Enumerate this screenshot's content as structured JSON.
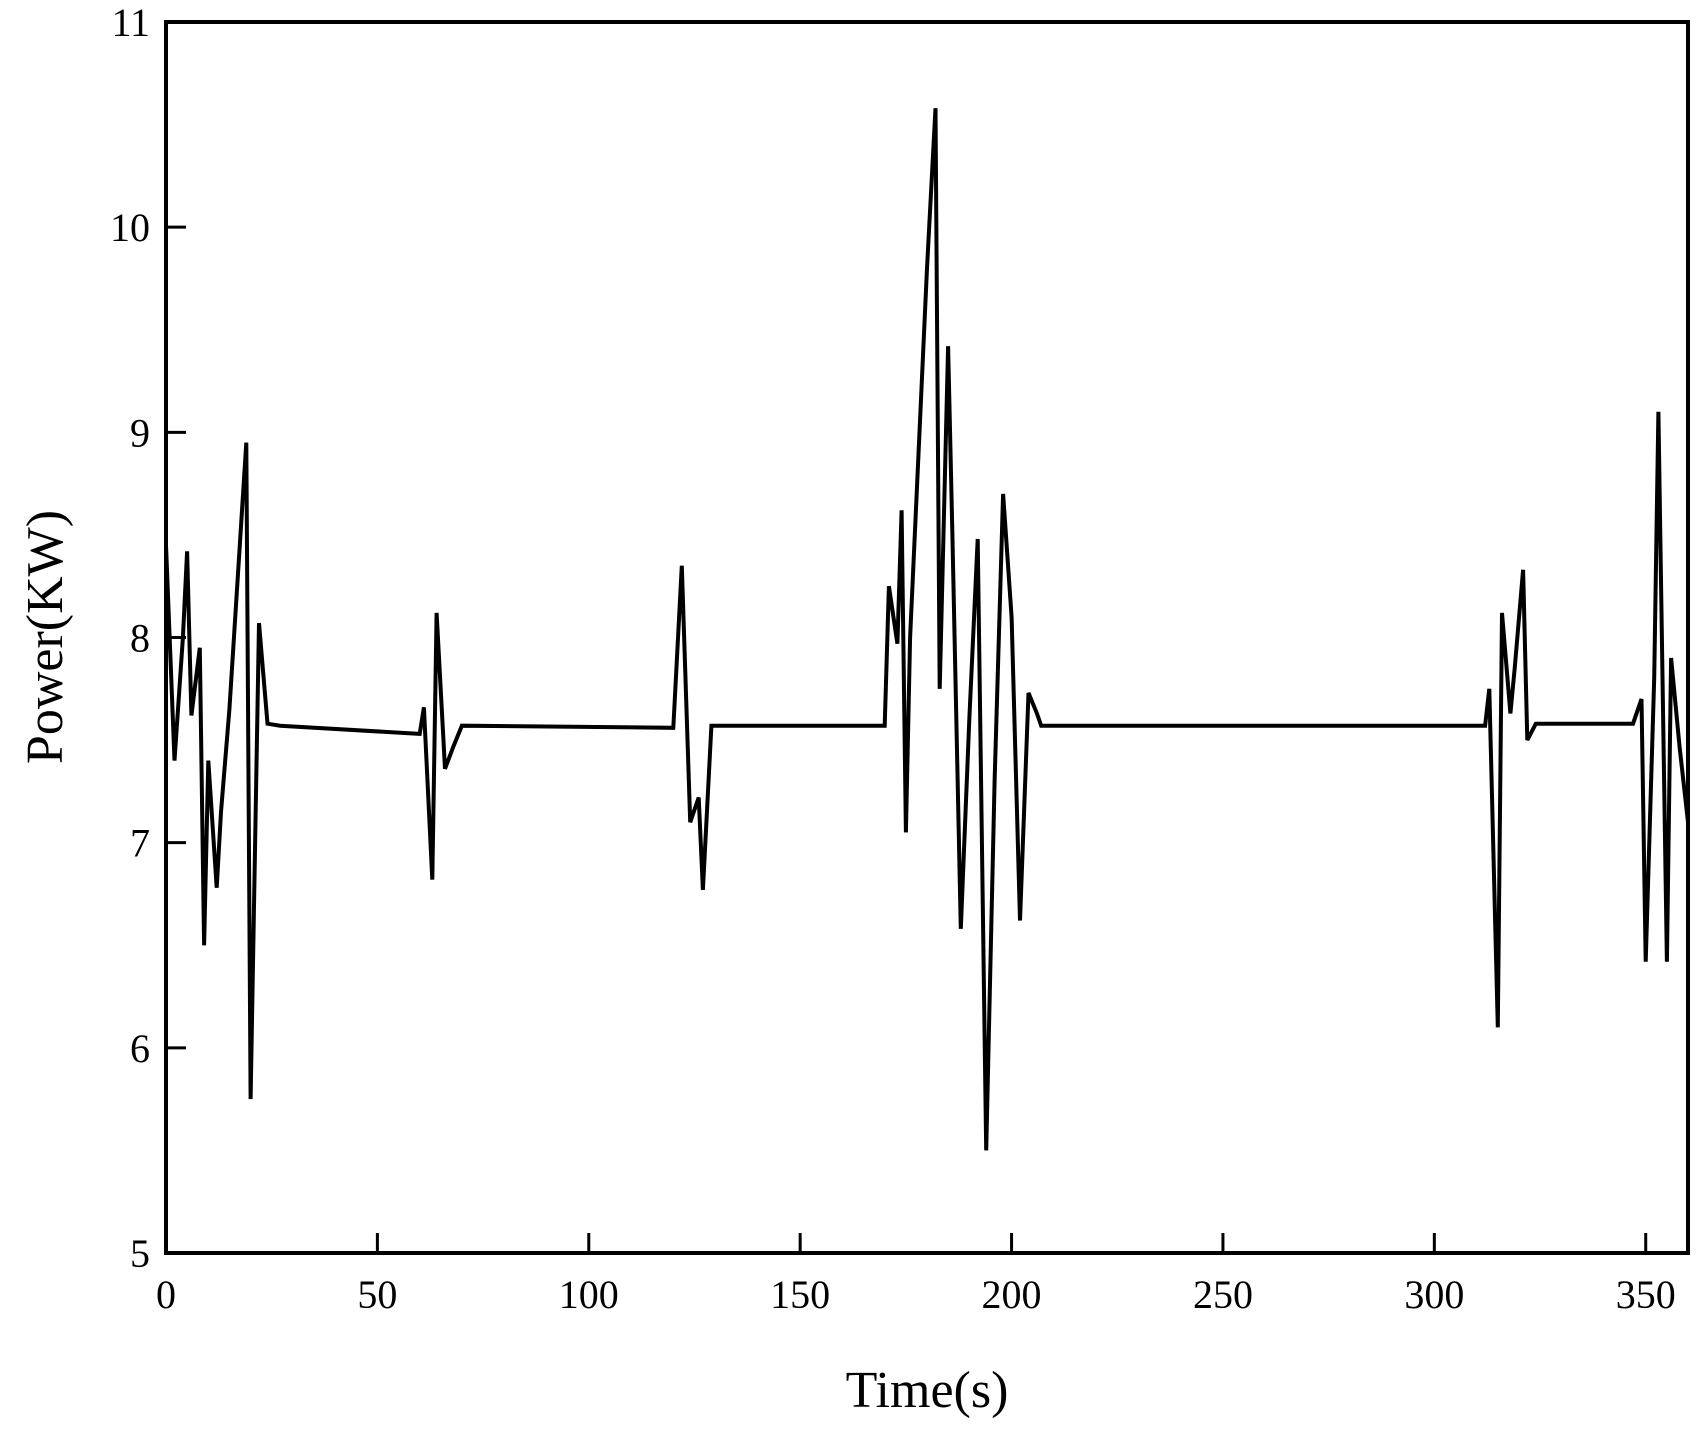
{
  "chart_data": {
    "type": "line",
    "xlabel": "Time(s)",
    "ylabel": "Power(KW)",
    "xlim": [
      0,
      360
    ],
    "ylim": [
      5,
      11
    ],
    "xticks": [
      0,
      50,
      100,
      150,
      200,
      250,
      300,
      350
    ],
    "yticks": [
      5,
      6,
      7,
      8,
      9,
      10,
      11
    ],
    "grid": false,
    "legend": "none",
    "line_color": "#000000",
    "series": [
      {
        "x": [
          0,
          2,
          4,
          5,
          6,
          8,
          9,
          10,
          12,
          13,
          15,
          19,
          20,
          22,
          24,
          27,
          60,
          61,
          63,
          64,
          66,
          68,
          70,
          120,
          122,
          124,
          126,
          127,
          129,
          130,
          170,
          171,
          173,
          174,
          175,
          176,
          180,
          182,
          183,
          185,
          186,
          188,
          190,
          192,
          194,
          196,
          198,
          200,
          202,
          204,
          206,
          207,
          209,
          210,
          312,
          313,
          315,
          316,
          318,
          319,
          321,
          322,
          324,
          325,
          347,
          349,
          350,
          352,
          353,
          355,
          356,
          358,
          360
        ],
        "y": [
          8.45,
          7.4,
          8.0,
          8.42,
          7.62,
          7.95,
          6.5,
          7.4,
          6.78,
          7.15,
          7.65,
          8.95,
          5.75,
          8.07,
          7.58,
          7.57,
          7.53,
          7.66,
          6.82,
          8.12,
          7.36,
          7.47,
          7.57,
          7.56,
          8.35,
          7.1,
          7.22,
          6.77,
          7.57,
          7.57,
          7.57,
          8.25,
          7.97,
          8.62,
          7.05,
          8.0,
          9.8,
          10.58,
          7.75,
          9.42,
          8.5,
          6.58,
          7.6,
          8.48,
          5.5,
          7.3,
          8.7,
          8.1,
          6.62,
          7.73,
          7.63,
          7.57,
          7.57,
          7.57,
          7.57,
          7.75,
          6.1,
          8.12,
          7.63,
          7.85,
          8.33,
          7.5,
          7.58,
          7.58,
          7.58,
          7.7,
          6.42,
          7.8,
          9.1,
          6.42,
          7.9,
          7.47,
          7.1
        ]
      }
    ]
  }
}
